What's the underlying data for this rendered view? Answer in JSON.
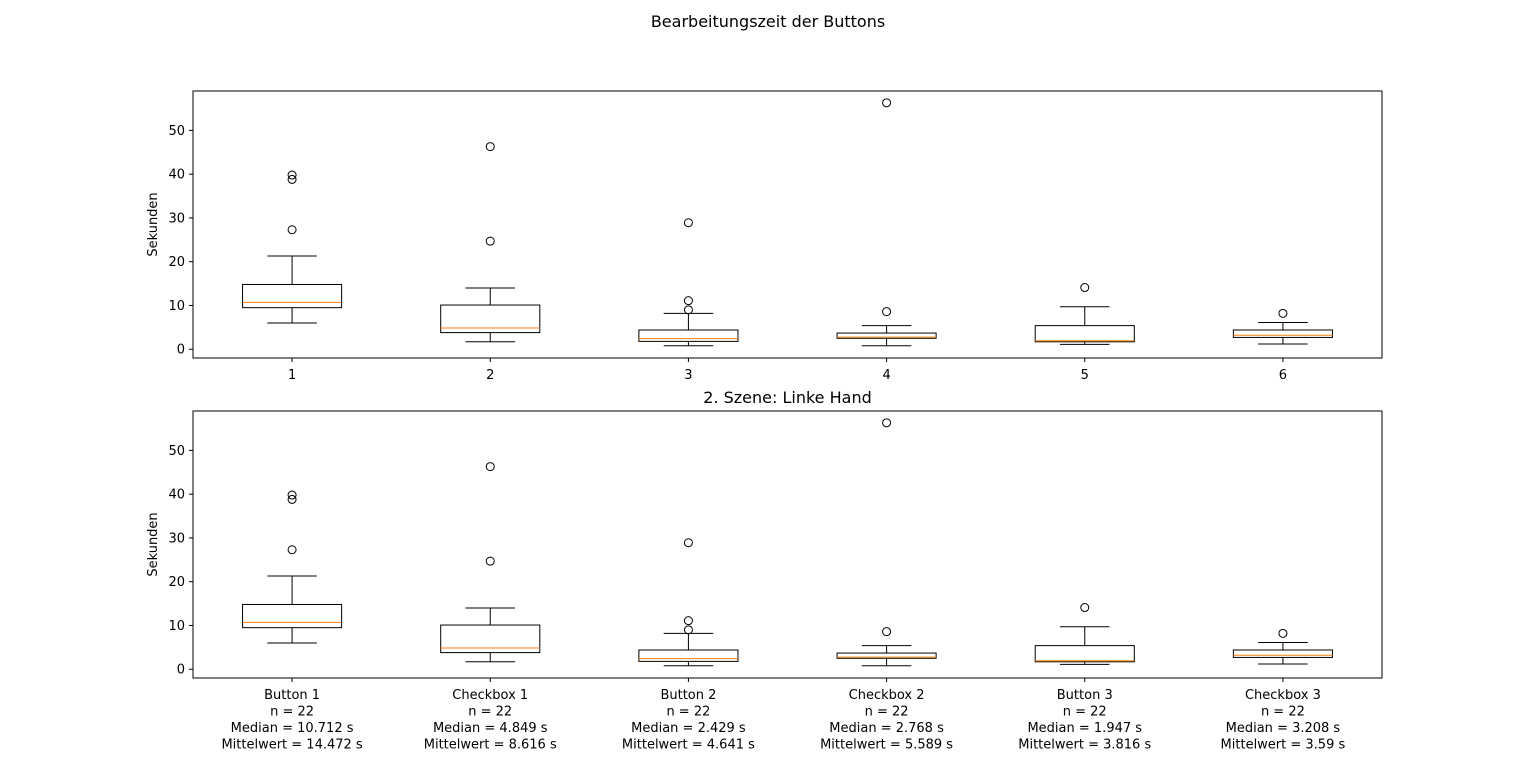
{
  "figure": {
    "suptitle": "Bearbeitungszeit der Buttons"
  },
  "chart_data": [
    {
      "type": "box",
      "title": "",
      "xlabel": "",
      "ylabel": "Sekunden",
      "ylim": [
        -2,
        59
      ],
      "yticks": [
        0,
        10,
        20,
        30,
        40,
        50
      ],
      "grid": false,
      "categories": [
        "1",
        "2",
        "3",
        "4",
        "5",
        "6"
      ],
      "box_color": "#000000",
      "median_color": "#ff7f0e",
      "boxes": [
        {
          "whislo": 6.0,
          "q1": 9.5,
          "med": 10.712,
          "q3": 14.8,
          "whishi": 21.3,
          "fliers": [
            27.3,
            38.8,
            39.8
          ]
        },
        {
          "whislo": 1.7,
          "q1": 3.8,
          "med": 4.849,
          "q3": 10.1,
          "whishi": 14.0,
          "fliers": [
            24.7,
            46.3
          ]
        },
        {
          "whislo": 0.8,
          "q1": 1.8,
          "med": 2.429,
          "q3": 4.4,
          "whishi": 8.2,
          "fliers": [
            9.0,
            11.1,
            28.9
          ]
        },
        {
          "whislo": 0.8,
          "q1": 2.5,
          "med": 2.768,
          "q3": 3.7,
          "whishi": 5.4,
          "fliers": [
            8.6,
            56.3
          ]
        },
        {
          "whislo": 1.1,
          "q1": 1.7,
          "med": 1.947,
          "q3": 5.4,
          "whishi": 9.7,
          "fliers": [
            14.1
          ]
        },
        {
          "whislo": 1.2,
          "q1": 2.7,
          "med": 3.208,
          "q3": 4.4,
          "whishi": 6.1,
          "fliers": [
            8.2
          ]
        }
      ]
    },
    {
      "type": "box",
      "title": "2. Szene: Linke Hand",
      "xlabel": "",
      "ylabel": "Sekunden",
      "ylim": [
        -2,
        59
      ],
      "yticks": [
        0,
        10,
        20,
        30,
        40,
        50
      ],
      "grid": false,
      "categories": [
        [
          "Button 1",
          "n = 22",
          "Median = 10.712 s",
          "Mittelwert = 14.472 s"
        ],
        [
          "Checkbox 1",
          "n = 22",
          "Median = 4.849 s",
          "Mittelwert = 8.616 s"
        ],
        [
          "Button 2",
          "n = 22",
          "Median = 2.429 s",
          "Mittelwert = 4.641 s"
        ],
        [
          "Checkbox 2",
          "n = 22",
          "Median = 2.768 s",
          "Mittelwert = 5.589 s"
        ],
        [
          "Button 3",
          "n = 22",
          "Median = 1.947 s",
          "Mittelwert = 3.816 s"
        ],
        [
          "Checkbox 3",
          "n = 22",
          "Median = 3.208 s",
          "Mittelwert = 3.59 s"
        ]
      ],
      "box_color": "#000000",
      "median_color": "#ff7f0e",
      "boxes": [
        {
          "whislo": 6.0,
          "q1": 9.5,
          "med": 10.712,
          "q3": 14.8,
          "whishi": 21.3,
          "fliers": [
            27.3,
            38.8,
            39.8
          ]
        },
        {
          "whislo": 1.7,
          "q1": 3.8,
          "med": 4.849,
          "q3": 10.1,
          "whishi": 14.0,
          "fliers": [
            24.7,
            46.3
          ]
        },
        {
          "whislo": 0.8,
          "q1": 1.8,
          "med": 2.429,
          "q3": 4.4,
          "whishi": 8.2,
          "fliers": [
            9.0,
            11.1,
            28.9
          ]
        },
        {
          "whislo": 0.8,
          "q1": 2.5,
          "med": 2.768,
          "q3": 3.7,
          "whishi": 5.4,
          "fliers": [
            8.6,
            56.3
          ]
        },
        {
          "whislo": 1.1,
          "q1": 1.7,
          "med": 1.947,
          "q3": 5.4,
          "whishi": 9.7,
          "fliers": [
            14.1
          ]
        },
        {
          "whislo": 1.2,
          "q1": 2.7,
          "med": 3.208,
          "q3": 4.4,
          "whishi": 6.1,
          "fliers": [
            8.2
          ]
        }
      ]
    }
  ]
}
